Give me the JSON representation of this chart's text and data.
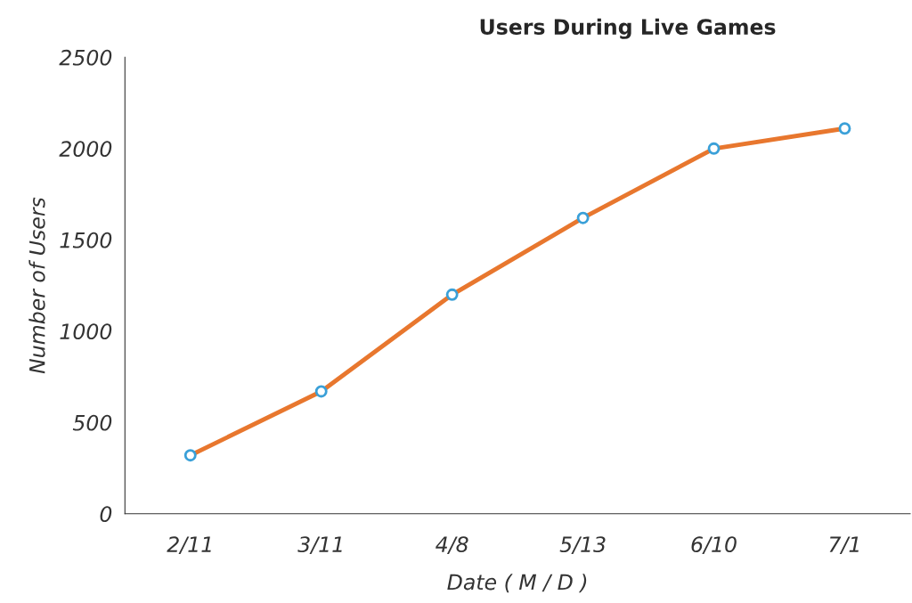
{
  "chart_data": {
    "type": "line",
    "title": "Users During Live Games",
    "xlabel": "Date ( M / D )",
    "ylabel": "Number of Users",
    "categories": [
      "2/11",
      "3/11",
      "4/8",
      "5/13",
      "6/10",
      "7/1"
    ],
    "series": [
      {
        "color": "#e8772e",
        "values": [
          320,
          670,
          1200,
          1620,
          2000,
          2110
        ]
      }
    ],
    "ylim": [
      0,
      2500
    ],
    "yticks": [
      0,
      500,
      1000,
      1500,
      2000,
      2500
    ],
    "marker": "circle",
    "line_style": "solid",
    "grid": false,
    "legend": false
  }
}
